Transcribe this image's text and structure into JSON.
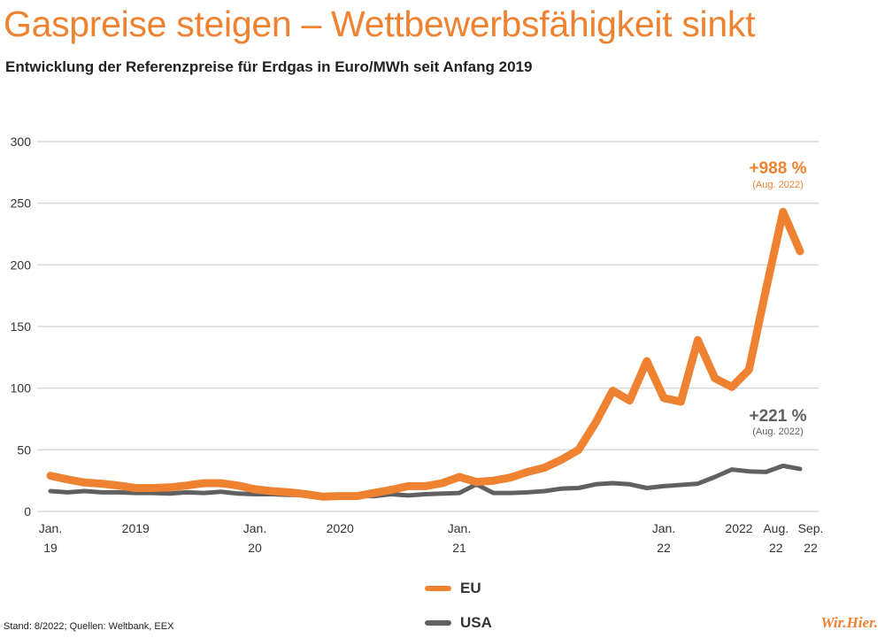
{
  "title": "Gaspreise steigen – Wettbewerbsfähigkeit sinkt",
  "subtitle": "Entwicklung der Referenzpreise für Erdgas in Euro/MWh seit Anfang 2019",
  "footer": "Stand: 8/2022; Quellen: Weltbank, EEX",
  "logo": "Wir.Hier.",
  "chart_data": {
    "type": "line",
    "ylim": [
      0,
      300
    ],
    "yticks": [
      0,
      50,
      100,
      150,
      200,
      250,
      300
    ],
    "grid": true,
    "legend_placement": "bottom",
    "x": [
      "2019-01",
      "2019-02",
      "2019-03",
      "2019-04",
      "2019-05",
      "2019-06",
      "2019-07",
      "2019-08",
      "2019-09",
      "2019-10",
      "2019-11",
      "2019-12",
      "2020-01",
      "2020-02",
      "2020-03",
      "2020-04",
      "2020-05",
      "2020-06",
      "2020-07",
      "2020-08",
      "2020-09",
      "2020-10",
      "2020-11",
      "2020-12",
      "2021-01",
      "2021-02",
      "2021-03",
      "2021-04",
      "2021-05",
      "2021-06",
      "2021-07",
      "2021-08",
      "2021-09",
      "2021-10",
      "2021-11",
      "2021-12",
      "2022-01",
      "2022-02",
      "2022-03",
      "2022-04",
      "2022-05",
      "2022-06",
      "2022-07",
      "2022-08",
      "2022-09"
    ],
    "xtick_labels": [
      {
        "index": 0,
        "line1": "Jan.",
        "line2": "19"
      },
      {
        "index": 5,
        "line1": "2019",
        "line2": ""
      },
      {
        "index": 12,
        "line1": "Jan.",
        "line2": "20"
      },
      {
        "index": 17,
        "line1": "2020",
        "line2": ""
      },
      {
        "index": 24,
        "line1": "Jan.",
        "line2": "21"
      },
      {
        "index": 36,
        "line1": "Jan.",
        "line2": "22"
      },
      {
        "index": 40,
        "line1": "2022",
        "line2": ""
      },
      {
        "index": 43,
        "line1": "Aug.",
        "line2": "22"
      },
      {
        "index": 44,
        "line1": "Sep.",
        "line2": "22"
      }
    ],
    "series": [
      {
        "name": "EU",
        "color": "#ef8231",
        "values": [
          29,
          26,
          23.5,
          22.5,
          21,
          19,
          19,
          19.5,
          21,
          23,
          23,
          21,
          18,
          16.5,
          15.5,
          14,
          12,
          12.5,
          12.5,
          15,
          17.5,
          20.5,
          20.5,
          23,
          28,
          24,
          25,
          27.5,
          32,
          35.5,
          42,
          50,
          72,
          98,
          90,
          122,
          92,
          89,
          139,
          108,
          101,
          115,
          180,
          243,
          211
        ],
        "annotation": {
          "text": "+988 %",
          "sub": "(Aug. 2022)"
        }
      },
      {
        "name": "USA",
        "color": "#606060",
        "values": [
          16.5,
          15.5,
          16.5,
          15.5,
          15.5,
          15,
          15,
          14.5,
          15.5,
          15,
          16,
          14.5,
          14,
          14,
          13.5,
          13.5,
          13,
          12.5,
          12.5,
          12.5,
          14,
          13,
          14,
          14.5,
          15,
          22,
          15,
          15,
          15.5,
          16.5,
          18.5,
          19,
          22,
          23,
          22,
          19,
          20.5,
          21.5,
          22.5,
          28,
          34,
          32.5,
          32,
          37,
          34.5
        ],
        "annotation": {
          "text": "+221 %",
          "sub": "(Aug. 2022)"
        }
      }
    ]
  }
}
